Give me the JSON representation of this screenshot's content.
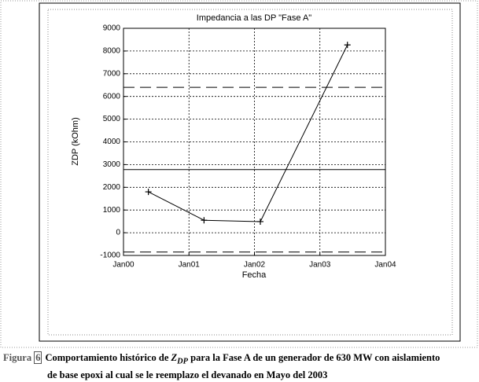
{
  "chart_data": {
    "type": "line",
    "title": "Impedancia a las DP \"Fase A\"",
    "xlabel": "Fecha",
    "ylabel": "ZDP (kOhm)",
    "x": [
      2000.38,
      2001.23,
      2002.09,
      2003.42
    ],
    "series": [
      {
        "color": "#000000",
        "values": [
          1800,
          550,
          490,
          8270
        ]
      }
    ],
    "xlim": [
      2000,
      2004
    ],
    "xticks": [
      {
        "value": 2000,
        "label": "Jan00"
      },
      {
        "value": 2001,
        "label": "Jan01"
      },
      {
        "value": 2002,
        "label": "Jan02"
      },
      {
        "value": 2003,
        "label": "Jan03"
      },
      {
        "value": 2004,
        "label": "Jan04"
      }
    ],
    "ylim": [
      -1000,
      9000
    ],
    "yticks": [
      -1000,
      0,
      1000,
      2000,
      3000,
      4000,
      5000,
      6000,
      7000,
      8000,
      9000
    ],
    "hlines": [
      {
        "value": 2780,
        "style": "solid"
      },
      {
        "value": 6400,
        "style": "dashed"
      },
      {
        "value": -850,
        "style": "dashed"
      }
    ],
    "grid": true
  },
  "caption": {
    "label": "Figura",
    "number": "6",
    "text_before": "Comportamiento histórico de ",
    "symbol": "Z",
    "subscript": "DP",
    "text_after": "para la Fase A de un generador de 630 MW con aislamiento",
    "line2": "de base epoxi al cual se le reemplazo el devanado en Mayo del 2003"
  }
}
